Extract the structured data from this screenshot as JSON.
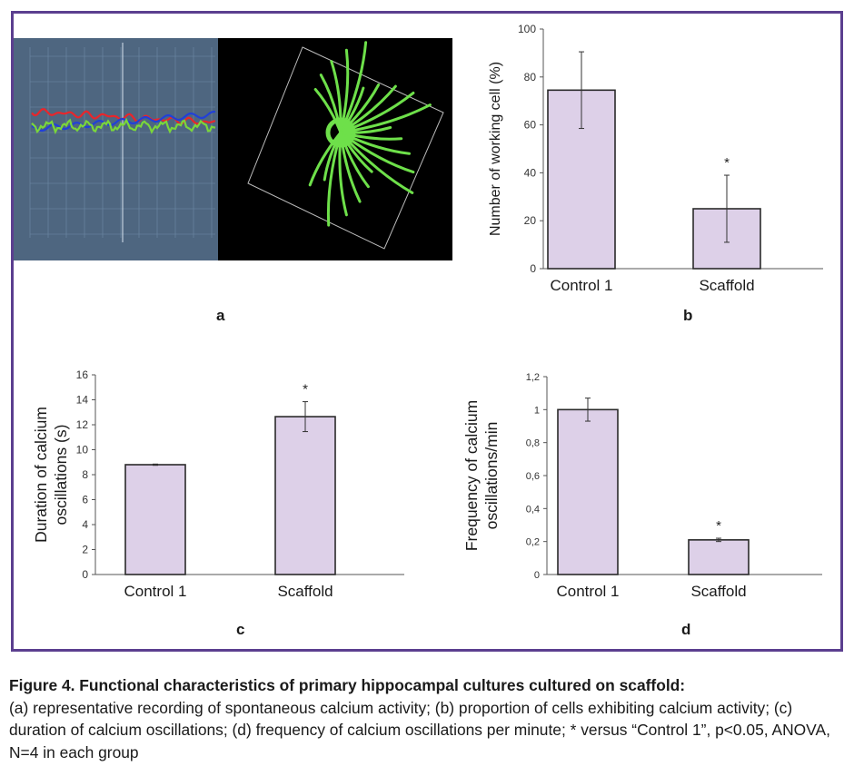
{
  "figure": {
    "panel_letters": {
      "a": "a",
      "b": "b",
      "c": "c",
      "d": "d"
    },
    "caption_title": "Figure 4. Functional characteristics of primary hippocampal cultures cultured on scaffold:",
    "caption_body": "(a) representative recording of spontaneous calcium activity; (b) proportion of cells exhibiting calcium activity; (c) duration of calcium oscillations; (d) frequency of calcium oscillations per minute; * versus “Control 1”, p<0.05, ANOVA, N=4 in each group",
    "colors": {
      "frame": "#5b3f8f",
      "bar_fill": "#ddd0e8",
      "bar_stroke": "#2a2a2a"
    }
  },
  "panel_a": {
    "trace_colors": {
      "red": "#e8262b",
      "blue": "#2140d8",
      "green": "#7ad63a"
    },
    "cell_color": "#6ee04a",
    "plot_bg": "#4e6680",
    "image_bg": "#000000"
  },
  "chart_data": [
    {
      "id": "b",
      "type": "bar",
      "categories": [
        "Control 1",
        "Scaffold"
      ],
      "values": [
        74.5,
        25
      ],
      "errors": [
        16,
        14
      ],
      "significance": [
        "",
        "*"
      ],
      "ylabel": "Number of working cell (%)",
      "ylim": [
        0,
        100
      ],
      "yticks": [
        "0",
        "20",
        "40",
        "60",
        "80",
        "100"
      ],
      "ytick_values": [
        0,
        20,
        40,
        60,
        80,
        100
      ]
    },
    {
      "id": "c",
      "type": "bar",
      "categories": [
        "Control 1",
        "Scaffold"
      ],
      "values": [
        8.8,
        12.65
      ],
      "errors": [
        0.05,
        1.2
      ],
      "significance": [
        "",
        "*"
      ],
      "ylabel": "Duration of calcium oscillations (s)",
      "ylim": [
        0,
        16
      ],
      "yticks": [
        "0",
        "2",
        "4",
        "6",
        "8",
        "10",
        "12",
        "14",
        "16"
      ],
      "ytick_values": [
        0,
        2,
        4,
        6,
        8,
        10,
        12,
        14,
        16
      ]
    },
    {
      "id": "d",
      "type": "bar",
      "categories": [
        "Control 1",
        "Scaffold"
      ],
      "values": [
        1.0,
        0.21
      ],
      "errors": [
        0.07,
        0.01
      ],
      "significance": [
        "",
        "*"
      ],
      "ylabel": "Frequency of calcium oscillations/min",
      "ylim": [
        0,
        1.2
      ],
      "yticks": [
        "0",
        "0,2",
        "0,4",
        "0,6",
        "0,8",
        "1",
        "1,2"
      ],
      "ytick_values": [
        0,
        0.2,
        0.4,
        0.6,
        0.8,
        1.0,
        1.2
      ]
    }
  ]
}
